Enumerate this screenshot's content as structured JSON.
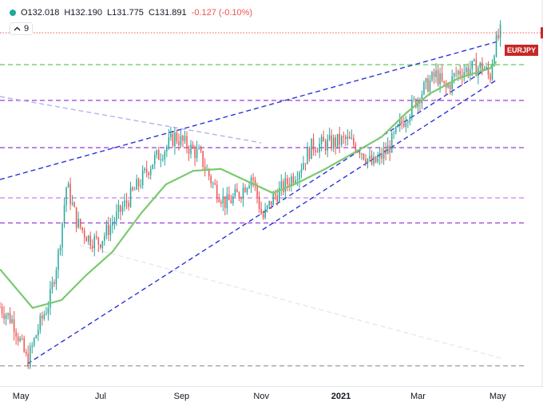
{
  "header": {
    "open": "O132.018",
    "high": "H132.190",
    "low": "L131.775",
    "close": "C131.891",
    "change": "-0.127 (-0.10%)",
    "ma_period": "9",
    "ticker": "EURJPY"
  },
  "colors": {
    "up": "#26a69a",
    "down": "#ef5350",
    "ma": "#7ac96f",
    "trend": "#2b35d6",
    "level_purple": "#9b3bdc",
    "level_green": "#6fcf6f"
  },
  "chart_data": {
    "type": "candlestick",
    "ticker": "EURJPY",
    "ohlc_last": {
      "open": 132.018,
      "high": 132.19,
      "low": 131.775,
      "close": 131.891,
      "change": -0.127,
      "change_pct": -0.1
    },
    "moving_average_period": 9,
    "x_tick_labels": [
      "May",
      "Jul",
      "Sep",
      "Nov",
      "2021",
      "Mar",
      "May"
    ],
    "x_label_dates": [
      "2020-05-01",
      "2020-07-01",
      "2020-09-01",
      "2020-11-01",
      "2021-01-01",
      "2021-03-01",
      "2021-05-01"
    ],
    "xlim": [
      "2020-04-15",
      "2021-05-21"
    ],
    "ylim": [
      113.6,
      133.6
    ],
    "levels": [
      {
        "value": 131.9,
        "style": "dotted",
        "color": "#ef5350"
      },
      {
        "value": 130.25,
        "style": "dashed",
        "color": "#6fcf6f"
      },
      {
        "value": 128.4,
        "style": "dashed",
        "color": "#9b3bdc"
      },
      {
        "value": 125.95,
        "style": "dashed",
        "color": "#9b3bdc"
      },
      {
        "value": 123.35,
        "style": "dashed",
        "color": "#d08ae8"
      },
      {
        "value": 122.05,
        "style": "dashed",
        "color": "#9b3bdc"
      },
      {
        "value": 114.65,
        "style": "dashed",
        "color": "#9e9e9e"
      }
    ],
    "trendlines": [
      {
        "from": [
          "2020-04-15",
          124.3
        ],
        "to": [
          "2021-05-01",
          131.45
        ],
        "color": "#2b35d6"
      },
      {
        "from": [
          "2020-05-06",
          114.75
        ],
        "to": [
          "2021-04-30",
          130.35
        ],
        "color": "#2b35d6"
      },
      {
        "from": [
          "2020-11-02",
          121.7
        ],
        "to": [
          "2021-04-30",
          129.45
        ],
        "color": "#2b35d6"
      },
      {
        "from": [
          "2020-04-15",
          128.6
        ],
        "to": [
          "2020-11-01",
          126.2
        ],
        "color": "#b7b0ee"
      },
      {
        "from": [
          "2020-06-15",
          120.9
        ],
        "to": [
          "2021-05-06",
          115.0
        ],
        "color": "#e8e8ee"
      }
    ],
    "ma_points": [
      [
        "2020-04-15",
        119.65
      ],
      [
        "2020-05-10",
        117.65
      ],
      [
        "2020-06-01",
        118.05
      ],
      [
        "2020-06-20",
        119.35
      ],
      [
        "2020-07-10",
        120.55
      ],
      [
        "2020-08-01",
        122.55
      ],
      [
        "2020-08-20",
        124.05
      ],
      [
        "2020-09-10",
        124.75
      ],
      [
        "2020-10-01",
        124.85
      ],
      [
        "2020-10-20",
        124.25
      ],
      [
        "2020-11-10",
        123.6
      ],
      [
        "2020-12-01",
        124.2
      ],
      [
        "2020-12-20",
        124.85
      ],
      [
        "2021-01-10",
        125.65
      ],
      [
        "2021-02-01",
        126.5
      ],
      [
        "2021-02-20",
        127.75
      ],
      [
        "2021-03-10",
        128.75
      ],
      [
        "2021-04-01",
        129.55
      ],
      [
        "2021-04-25",
        130.05
      ],
      [
        "2021-04-30",
        130.4
      ]
    ],
    "close_path": [
      [
        "2020-04-15",
        117.7
      ],
      [
        "2020-04-25",
        116.95
      ],
      [
        "2020-05-06",
        114.85
      ],
      [
        "2020-05-14",
        116.55
      ],
      [
        "2020-05-23",
        118.05
      ],
      [
        "2020-05-30",
        120.55
      ],
      [
        "2020-06-05",
        124.05
      ],
      [
        "2020-06-13",
        122.05
      ],
      [
        "2020-06-22",
        121.25
      ],
      [
        "2020-06-30",
        121.05
      ],
      [
        "2020-07-10",
        122.05
      ],
      [
        "2020-07-20",
        123.05
      ],
      [
        "2020-07-30",
        124.05
      ],
      [
        "2020-08-10",
        125.25
      ],
      [
        "2020-08-20",
        125.95
      ],
      [
        "2020-08-27",
        126.55
      ],
      [
        "2020-09-05",
        126.05
      ],
      [
        "2020-09-15",
        125.55
      ],
      [
        "2020-09-25",
        124.05
      ],
      [
        "2020-10-05",
        123.05
      ],
      [
        "2020-10-15",
        123.55
      ],
      [
        "2020-10-25",
        124.55
      ],
      [
        "2020-11-02",
        122.25
      ],
      [
        "2020-11-10",
        123.35
      ],
      [
        "2020-11-20",
        124.05
      ],
      [
        "2020-11-30",
        124.85
      ],
      [
        "2020-12-10",
        126.05
      ],
      [
        "2020-12-22",
        126.15
      ],
      [
        "2021-01-05",
        126.35
      ],
      [
        "2021-01-15",
        125.95
      ],
      [
        "2021-01-25",
        125.05
      ],
      [
        "2021-02-05",
        125.75
      ],
      [
        "2021-02-15",
        127.05
      ],
      [
        "2021-02-25",
        128.15
      ],
      [
        "2021-03-05",
        128.95
      ],
      [
        "2021-03-15",
        129.75
      ],
      [
        "2021-03-22",
        128.95
      ],
      [
        "2021-03-31",
        129.85
      ],
      [
        "2021-04-10",
        130.05
      ],
      [
        "2021-04-20",
        130.15
      ],
      [
        "2021-04-25",
        129.55
      ],
      [
        "2021-04-28",
        131.05
      ],
      [
        "2021-05-03",
        131.9
      ]
    ],
    "candle_count": 250
  }
}
